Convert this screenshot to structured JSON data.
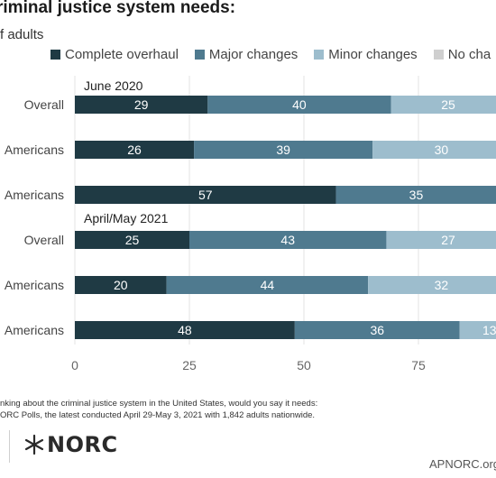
{
  "header": {
    "title": "riminal justice system needs:",
    "subtitle": "f adults"
  },
  "legend": [
    {
      "label": "Complete overhaul",
      "color": "#1f3a44"
    },
    {
      "label": "Major changes",
      "color": "#4f7a8f"
    },
    {
      "label": "Minor changes",
      "color": "#9dbdcd"
    },
    {
      "label": "No cha",
      "color": "#cfcfcf"
    }
  ],
  "chart_data": {
    "type": "bar",
    "orientation": "horizontal",
    "stacked": true,
    "xlim": [
      0,
      100
    ],
    "xticks": [
      0,
      25,
      50,
      75
    ],
    "grid": true,
    "legend_position": "top",
    "groups": [
      {
        "label": "June 2020",
        "rows": [
          {
            "label": "Overall",
            "values": [
              29,
              40,
              25
            ]
          },
          {
            "label": "Americans",
            "values": [
              26,
              39,
              30
            ]
          },
          {
            "label": "Americans",
            "values": [
              57,
              35
            ]
          }
        ]
      },
      {
        "label": "April/May 2021",
        "rows": [
          {
            "label": "Overall",
            "values": [
              25,
              43,
              27
            ]
          },
          {
            "label": "Americans",
            "values": [
              20,
              44,
              32
            ]
          },
          {
            "label": "Americans",
            "values": [
              48,
              36,
              13
            ]
          }
        ]
      }
    ],
    "series": [
      {
        "name": "Complete overhaul",
        "color": "#1f3a44"
      },
      {
        "name": "Major changes",
        "color": "#4f7a8f"
      },
      {
        "name": "Minor changes",
        "color": "#9dbdcd"
      },
      {
        "name": "No cha",
        "color": "#cfcfcf"
      }
    ]
  },
  "footer": {
    "note_line1": "nking about the criminal justice system in the United States, would you say it needs:",
    "note_line2": "ORC Polls, the latest conducted April 29-May 3, 2021 with 1,842 adults nationwide.",
    "logo_text": "NORC",
    "site": "APNORC.org"
  }
}
